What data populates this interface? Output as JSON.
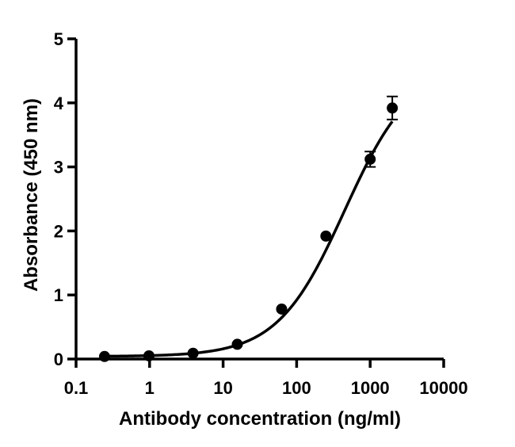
{
  "chart_data": {
    "type": "scatter",
    "title": "",
    "xlabel": "Antibody concentration (ng/ml)",
    "ylabel": "Absorbance (450 nm)",
    "xscale": "log",
    "xlim": [
      0.1,
      10000
    ],
    "ylim": [
      0,
      5
    ],
    "xticks": [
      0.1,
      1,
      10,
      100,
      1000,
      10000
    ],
    "xtick_labels": [
      "0.1",
      "1",
      "10",
      "100",
      "1000",
      "10000"
    ],
    "yticks": [
      0,
      1,
      2,
      3,
      4,
      5
    ],
    "ytick_labels": [
      "0",
      "1",
      "2",
      "3",
      "4",
      "5"
    ],
    "grid": false,
    "legend": "none",
    "color": "#000000",
    "points": [
      {
        "x": 0.244,
        "y": 0.04,
        "err": 0
      },
      {
        "x": 0.98,
        "y": 0.05,
        "err": 0
      },
      {
        "x": 3.9,
        "y": 0.09,
        "err": 0
      },
      {
        "x": 15.6,
        "y": 0.23,
        "err": 0
      },
      {
        "x": 62.5,
        "y": 0.78,
        "err": 0
      },
      {
        "x": 250,
        "y": 1.92,
        "err": 0
      },
      {
        "x": 1000,
        "y": 3.12,
        "err": 0.12
      },
      {
        "x": 2000,
        "y": 3.92,
        "err": 0.18
      }
    ],
    "fit_curve": {
      "model": "4PL",
      "bottom": 0.04,
      "top": 4.6,
      "ec50": 450,
      "hill": 0.95,
      "x_range": [
        0.244,
        2000
      ]
    }
  }
}
